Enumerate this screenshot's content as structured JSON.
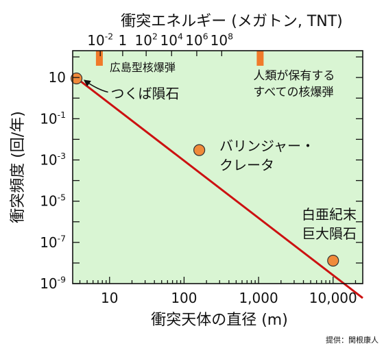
{
  "chart_data": {
    "type": "line",
    "title": "",
    "xlabel": "衝突天体の直径 (m)",
    "ylabel": "衝突頻度 (回/年)",
    "top_axis_label": "衝突エネルギー (メガトン, TNT)",
    "x_scale": "log",
    "y_scale": "log",
    "xlim": [
      3.2,
      25000
    ],
    "ylim": [
      1e-09,
      200
    ],
    "grid": false,
    "background_color": "#d9f5d3",
    "line_color": "#cc1111",
    "marker_color": "#f08a3a",
    "bar_color": "#f07a2a",
    "x_ticks": [
      {
        "value": 10,
        "label": "10"
      },
      {
        "value": 100,
        "label": "100"
      },
      {
        "value": 1000,
        "label": "1,000"
      },
      {
        "value": 10000,
        "label": "10,000"
      }
    ],
    "y_ticks": [
      {
        "value": 10,
        "base": "10",
        "exp": ""
      },
      {
        "value": 0.1,
        "base": "10",
        "exp": "-1"
      },
      {
        "value": 0.001,
        "base": "10",
        "exp": "-3"
      },
      {
        "value": 1e-05,
        "base": "10",
        "exp": "-5"
      },
      {
        "value": 1e-07,
        "base": "10",
        "exp": "-7"
      },
      {
        "value": 1e-09,
        "base": "10",
        "exp": "-9"
      }
    ],
    "top_ticks": [
      {
        "x": 7.5,
        "base": "10",
        "exp": "-2"
      },
      {
        "x": 15,
        "base": "1",
        "exp": ""
      },
      {
        "x": 31,
        "base": "10",
        "exp": "2"
      },
      {
        "x": 68,
        "base": "10",
        "exp": "4"
      },
      {
        "x": 148,
        "base": "10",
        "exp": "6"
      },
      {
        "x": 320,
        "base": "10",
        "exp": "8"
      }
    ],
    "line": {
      "x": [
        3.2,
        25000
      ],
      "y": [
        13,
        2e-10
      ]
    },
    "points": [
      {
        "x": 3.6,
        "y": 9,
        "label": "つくば隕石"
      },
      {
        "x": 160,
        "y": 0.003,
        "label": "バリンジャー・\nクレータ"
      },
      {
        "x": 10000,
        "y": 1.3e-08,
        "label": "白亜紀末\n巨大隕石"
      }
    ],
    "energy_bars": [
      {
        "x": 7.3,
        "label": "広島型核爆弾"
      },
      {
        "x": 1050,
        "label": "人類が保有する\nすべての核爆弾"
      }
    ]
  },
  "credit": "提供：関根康人"
}
